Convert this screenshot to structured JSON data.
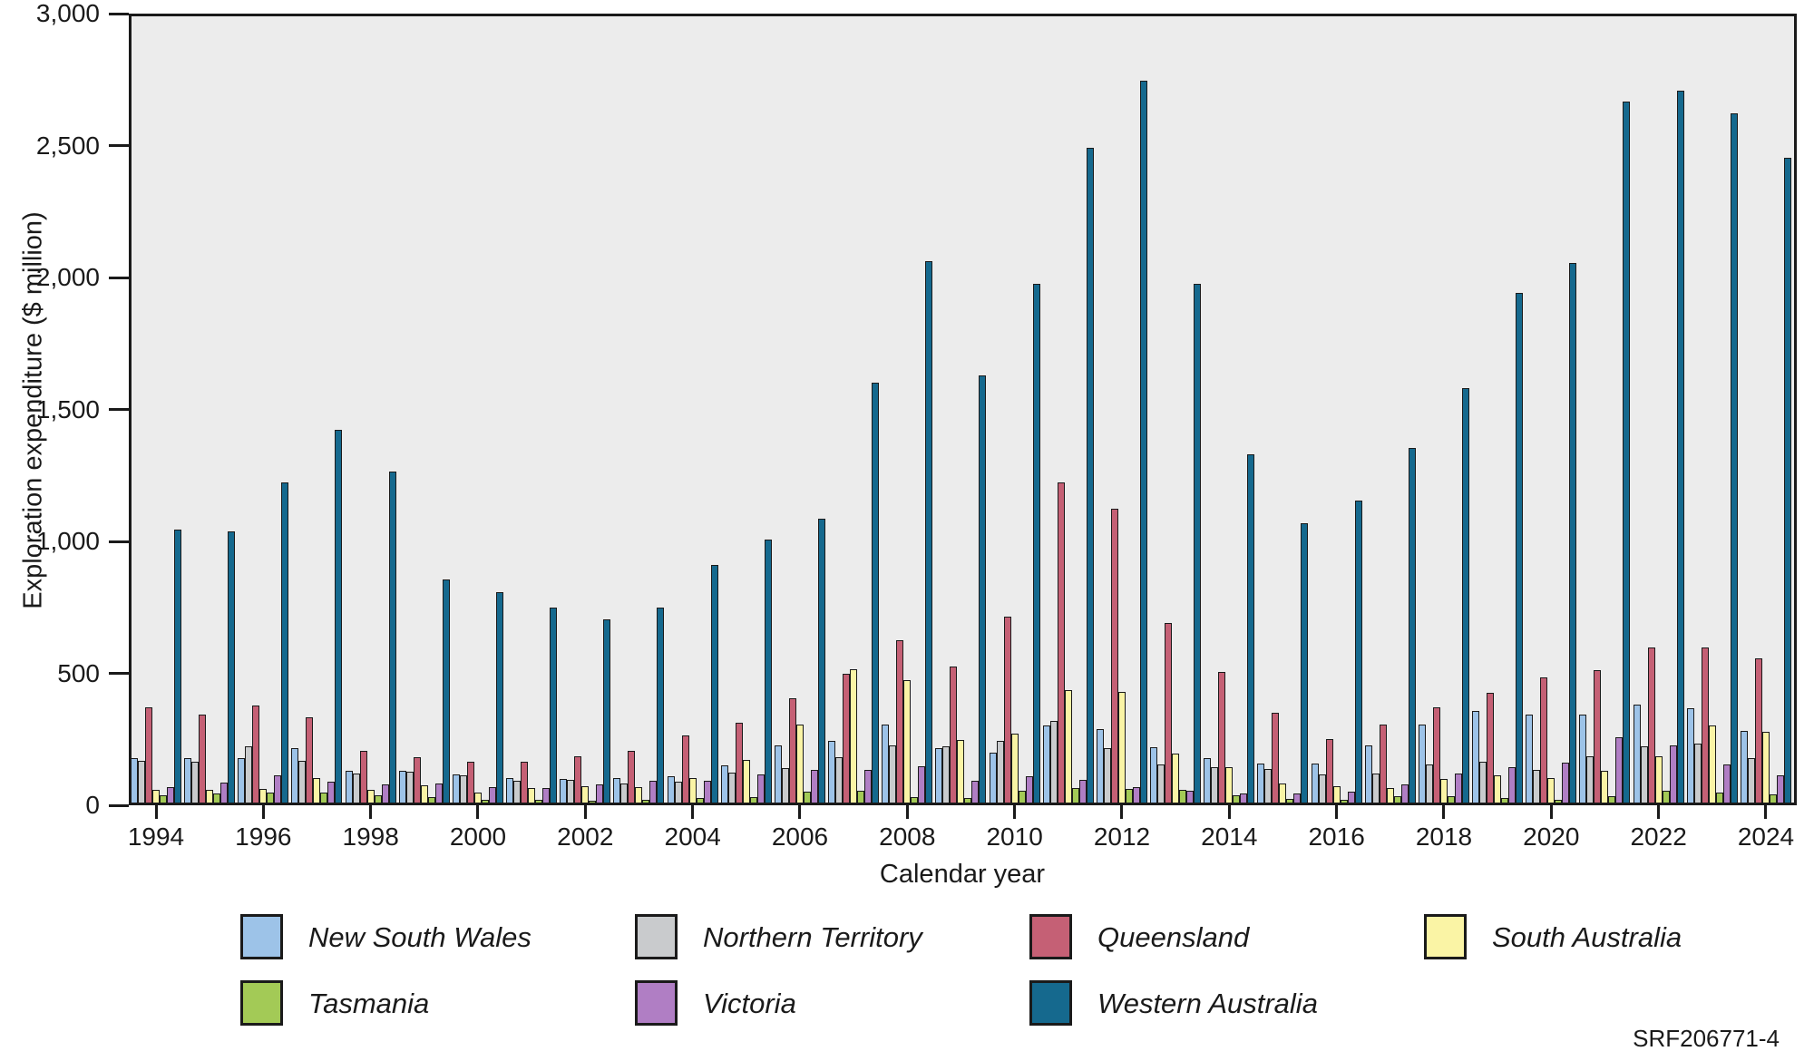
{
  "figure": {
    "code": "SRF206771-4"
  },
  "chart_data": {
    "type": "bar",
    "title": "",
    "xlabel": "Calendar year",
    "ylabel": "Exploration expenditure ($ million)",
    "ylim": [
      0,
      3000
    ],
    "ytick_interval": 500,
    "ytick_labels": [
      "0",
      "500",
      "1,000",
      "1,500",
      "2,000",
      "2,500",
      "3,000"
    ],
    "categories": [
      1994,
      1995,
      1996,
      1997,
      1998,
      1999,
      2000,
      2001,
      2002,
      2003,
      2004,
      2005,
      2006,
      2007,
      2008,
      2009,
      2010,
      2011,
      2012,
      2013,
      2014,
      2015,
      2016,
      2017,
      2018,
      2019,
      2020,
      2021,
      2022,
      2023,
      2024
    ],
    "xtick_labels": [
      "1994",
      "1996",
      "1998",
      "2000",
      "2002",
      "2004",
      "2006",
      "2008",
      "2010",
      "2012",
      "2014",
      "2016",
      "2018",
      "2020",
      "2022",
      "2024"
    ],
    "grid": false,
    "plot_background": "#ECECEC",
    "legend_position": "bottom",
    "legend_columns": 4,
    "series": [
      {
        "name": "New South Wales",
        "color": "#9DC3E8",
        "values": [
          170,
          170,
          170,
          205,
          122,
          119,
          107,
          94,
          88,
          92,
          100,
          142,
          218,
          233,
          297,
          206,
          190,
          292,
          280,
          209,
          169,
          148,
          149,
          217,
          296,
          348,
          333,
          334,
          371,
          356,
          270
        ]
      },
      {
        "name": "Northern Territory",
        "color": "#C9CBCD",
        "values": [
          158,
          155,
          212,
          158,
          111,
          116,
          104,
          83,
          86,
          71,
          79,
          114,
          129,
          171,
          215,
          212,
          235,
          309,
          206,
          146,
          134,
          128,
          106,
          111,
          146,
          154,
          125,
          175,
          214,
          224,
          169
        ]
      },
      {
        "name": "Queensland",
        "color": "#C56075",
        "values": [
          362,
          332,
          367,
          322,
          197,
          172,
          155,
          154,
          177,
          197,
          255,
          303,
          395,
          489,
          614,
          516,
          705,
          1214,
          1115,
          679,
          495,
          340,
          240,
          297,
          362,
          416,
          473,
          503,
          589,
          588,
          548
        ]
      },
      {
        "name": "South Australia",
        "color": "#FAF4A5",
        "values": [
          48,
          49,
          51,
          94,
          48,
          65,
          39,
          54,
          63,
          60,
          94,
          161,
          297,
          505,
          464,
          236,
          262,
          426,
          418,
          187,
          134,
          72,
          62,
          56,
          88,
          102,
          94,
          121,
          176,
          291,
          267
        ]
      },
      {
        "name": "Tasmania",
        "color": "#A3CA56",
        "values": [
          27,
          33,
          37,
          39,
          28,
          22,
          12,
          10,
          8,
          11,
          17,
          22,
          40,
          44,
          22,
          17,
          45,
          54,
          51,
          47,
          29,
          14,
          11,
          25,
          25,
          17,
          10,
          23,
          44,
          37,
          31
        ]
      },
      {
        "name": "Victoria",
        "color": "#B07EC4",
        "values": [
          57,
          75,
          102,
          78,
          70,
          71,
          60,
          54,
          69,
          83,
          83,
          106,
          123,
          125,
          137,
          83,
          100,
          86,
          57,
          45,
          33,
          36,
          40,
          68,
          110,
          133,
          150,
          249,
          216,
          146,
          103
        ]
      },
      {
        "name": "Western Australia",
        "color": "#15698E",
        "values": [
          1035,
          1028,
          1213,
          1413,
          1255,
          845,
          796,
          738,
          694,
          740,
          900,
          998,
          1075,
          1590,
          2050,
          1620,
          1965,
          2480,
          2735,
          1965,
          1320,
          1058,
          1145,
          1345,
          1570,
          1930,
          2045,
          2657,
          2696,
          2613,
          2443
        ]
      }
    ]
  }
}
